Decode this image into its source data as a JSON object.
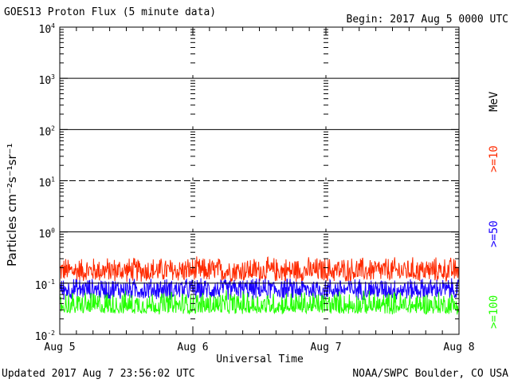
{
  "header": {
    "title": "GOES13 Proton Flux (5 minute data)",
    "begin": "Begin: 2017 Aug 5 0000 UTC"
  },
  "footer": {
    "updated": "Updated 2017 Aug  7 23:56:02 UTC",
    "source": "NOAA/SWPC Boulder, CO USA"
  },
  "colors": {
    "ge10": "#ff2a00",
    "ge50": "#1a00ff",
    "ge100": "#22ff00",
    "axis": "#000000"
  },
  "chart_data": {
    "type": "line",
    "title": "GOES13 Proton Flux (5 minute data)",
    "xlabel": "Universal Time",
    "ylabel": "Particles cm⁻²s⁻¹sr⁻¹",
    "yscale": "log",
    "ylim": [
      0.01,
      10000
    ],
    "xlim_days": [
      0,
      3
    ],
    "x_ticks": [
      "Aug 5",
      "Aug 6",
      "Aug 7",
      "Aug 8"
    ],
    "y_ticks": [
      {
        "base": "10",
        "exp": "-2"
      },
      {
        "base": "10",
        "exp": "-1"
      },
      {
        "base": "10",
        "exp": "0"
      },
      {
        "base": "10",
        "exp": "1"
      },
      {
        "base": "10",
        "exp": "2"
      },
      {
        "base": "10",
        "exp": "3"
      },
      {
        "base": "10",
        "exp": "4"
      }
    ],
    "right_unit": "MeV",
    "series": [
      {
        "name": ">=10",
        "baseline": 0.17,
        "min": 0.1,
        "max": 0.34
      },
      {
        "name": ">=50",
        "baseline": 0.075,
        "min": 0.045,
        "max": 0.13
      },
      {
        "name": ">=100",
        "baseline": 0.034,
        "min": 0.024,
        "max": 0.075
      }
    ],
    "grid": "horizontal lines at decades (dashed at 10^1), dashed day separators"
  }
}
